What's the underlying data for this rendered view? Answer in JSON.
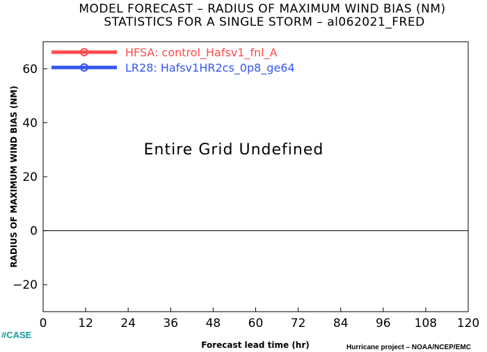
{
  "chart_data": {
    "type": "line",
    "title": "MODEL FORECAST – RADIUS OF MAXIMUM WIND BIAS (NM)",
    "subtitle": "STATISTICS FOR A SINGLE STORM – al062021_FRED",
    "xlabel": "Forecast lead time (hr)",
    "ylabel": "RADIUS OF MAXIMUM WIND BIAS (NM)",
    "xlim": [
      0,
      120
    ],
    "ylim": [
      -30,
      70
    ],
    "xticks": [
      0,
      12,
      24,
      36,
      48,
      60,
      72,
      84,
      96,
      108,
      120
    ],
    "yticks": [
      -20,
      0,
      20,
      40,
      60
    ],
    "ytick_labels": [
      "−20",
      "0",
      "20",
      "40",
      "60"
    ],
    "zero_line": 0,
    "grid": false,
    "legend_position": "top-left",
    "series": [
      {
        "name": "HFSA:  control_Hafsv1_fnl_A",
        "color": "#ff4a4a",
        "values": []
      },
      {
        "name": "LR28:  Hafsv1HR2cs_0p8_ge64",
        "color": "#3355ee",
        "values": []
      }
    ],
    "annotation": "Entire Grid Undefined"
  },
  "footer": {
    "left": "#CASE",
    "right": "Hurricane project – NOAA/NCEP/EMC"
  }
}
